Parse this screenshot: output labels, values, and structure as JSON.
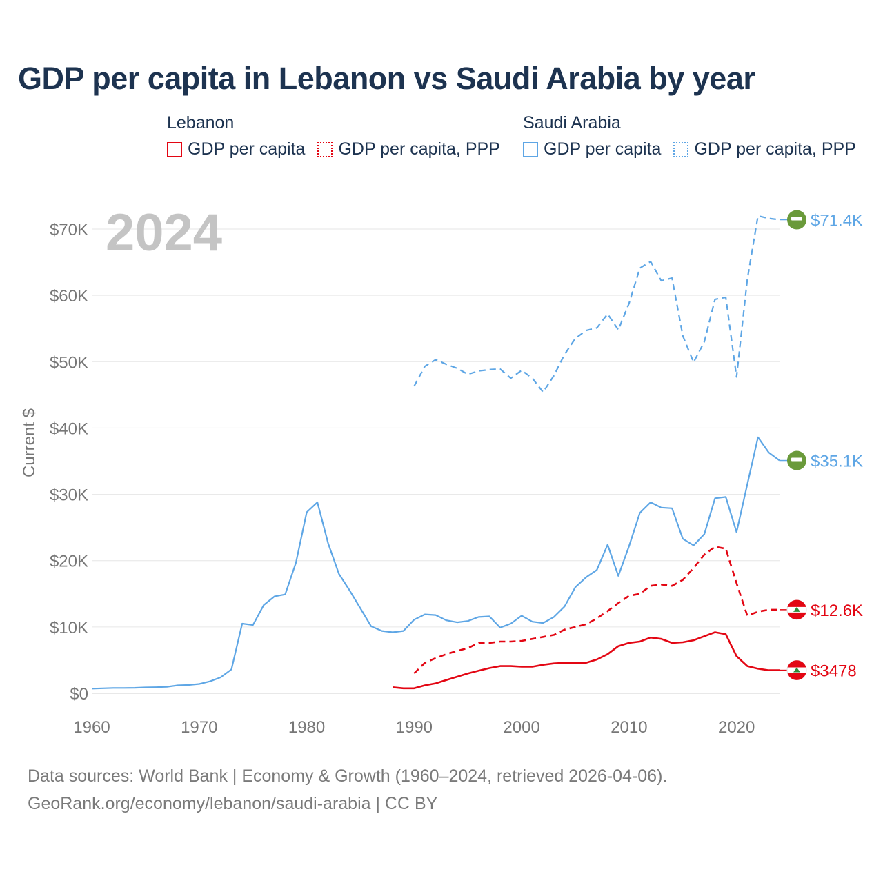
{
  "title": "GDP per capita in Lebanon vs Saudi Arabia by year",
  "legend": {
    "lebanon": {
      "name": "Lebanon",
      "solid": "GDP per capita",
      "ppp": "GDP per capita, PPP"
    },
    "saudi": {
      "name": "Saudi Arabia",
      "solid": "GDP per capita",
      "ppp": "GDP per capita, PPP"
    }
  },
  "footer": {
    "line1": "Data sources: World Bank | Economy & Growth (1960–2024, retrieved 2026-04-06).",
    "line2": "GeoRank.org/economy/lebanon/saudi-arabia | CC BY"
  },
  "colors": {
    "lebanon": "#e30613",
    "saudi": "#5ea6e5",
    "title": "#1d3350",
    "axis": "#777777",
    "grid": "#e6e6e6",
    "year": "#c4c4c4"
  },
  "chart_data": {
    "type": "line",
    "year_label": "2024",
    "ylabel": "Current $",
    "xlim": [
      1960,
      2024
    ],
    "ylim": [
      0,
      72000
    ],
    "x_ticks": [
      1960,
      1970,
      1980,
      1990,
      2000,
      2010,
      2020
    ],
    "x_tick_labels": [
      "1960",
      "1970",
      "1980",
      "1990",
      "2000",
      "2010",
      "2020"
    ],
    "y_ticks": [
      0,
      10000,
      20000,
      30000,
      40000,
      50000,
      60000,
      70000
    ],
    "y_tick_labels": [
      "$0",
      "$10K",
      "$20K",
      "$30K",
      "$40K",
      "$50K",
      "$60K",
      "$70K"
    ],
    "series": [
      {
        "name": "Saudi Arabia GDP per capita",
        "country": "saudi",
        "dashed": false,
        "end_label": "$35.1K",
        "x": [
          1960,
          1961,
          1962,
          1963,
          1964,
          1965,
          1966,
          1967,
          1968,
          1969,
          1970,
          1971,
          1972,
          1973,
          1974,
          1975,
          1976,
          1977,
          1978,
          1979,
          1980,
          1981,
          1982,
          1983,
          1984,
          1985,
          1986,
          1987,
          1988,
          1989,
          1990,
          1991,
          1992,
          1993,
          1994,
          1995,
          1996,
          1997,
          1998,
          1999,
          2000,
          2001,
          2002,
          2003,
          2004,
          2005,
          2006,
          2007,
          2008,
          2009,
          2010,
          2011,
          2012,
          2013,
          2014,
          2015,
          2016,
          2017,
          2018,
          2019,
          2020,
          2021,
          2022,
          2023,
          2024
        ],
        "values": [
          700,
          750,
          800,
          800,
          820,
          880,
          920,
          980,
          1200,
          1250,
          1400,
          1800,
          2400,
          3600,
          10500,
          10300,
          13300,
          14600,
          14900,
          19700,
          27300,
          28800,
          22600,
          18000,
          15500,
          12800,
          10100,
          9400,
          9200,
          9400,
          11100,
          11900,
          11800,
          11000,
          10700,
          10900,
          11500,
          11600,
          9900,
          10500,
          11700,
          10800,
          10600,
          11500,
          13100,
          16000,
          17500,
          18600,
          22400,
          17700,
          22200,
          27200,
          28800,
          28000,
          27900,
          23300,
          22300,
          24000,
          29400,
          29600,
          24300,
          31500,
          38600,
          36300,
          35100
        ]
      },
      {
        "name": "Saudi Arabia GDP per capita, PPP",
        "country": "saudi",
        "dashed": true,
        "end_label": "$71.4K",
        "x": [
          1990,
          1991,
          1992,
          1993,
          1994,
          1995,
          1996,
          1997,
          1998,
          1999,
          2000,
          2001,
          2002,
          2003,
          2004,
          2005,
          2006,
          2007,
          2008,
          2009,
          2010,
          2011,
          2012,
          2013,
          2014,
          2015,
          2016,
          2017,
          2018,
          2019,
          2020,
          2021,
          2022,
          2023,
          2024
        ],
        "values": [
          46300,
          49300,
          50300,
          49600,
          49000,
          48100,
          48600,
          48800,
          48900,
          47500,
          48700,
          47500,
          45400,
          47900,
          51100,
          53500,
          54700,
          55100,
          57200,
          54800,
          58800,
          64100,
          65100,
          62200,
          62600,
          53900,
          49900,
          53000,
          59400,
          59700,
          47700,
          62400,
          72000,
          71600,
          71400
        ]
      },
      {
        "name": "Lebanon GDP per capita",
        "country": "lebanon",
        "dashed": false,
        "end_label": "$3478",
        "x": [
          1988,
          1989,
          1990,
          1991,
          1992,
          1993,
          1994,
          1995,
          1996,
          1997,
          1998,
          1999,
          2000,
          2001,
          2002,
          2003,
          2004,
          2005,
          2006,
          2007,
          2008,
          2009,
          2010,
          2011,
          2012,
          2013,
          2014,
          2015,
          2016,
          2017,
          2018,
          2019,
          2020,
          2021,
          2022,
          2023,
          2024
        ],
        "values": [
          900,
          750,
          750,
          1200,
          1500,
          2000,
          2500,
          3000,
          3400,
          3800,
          4100,
          4100,
          4000,
          4000,
          4300,
          4500,
          4600,
          4600,
          4600,
          5100,
          5900,
          7100,
          7600,
          7800,
          8400,
          8200,
          7600,
          7700,
          8000,
          8600,
          9200,
          8900,
          5600,
          4100,
          3700,
          3478,
          3478
        ]
      },
      {
        "name": "Lebanon GDP per capita, PPP",
        "country": "lebanon",
        "dashed": true,
        "end_label": "$12.6K",
        "x": [
          1990,
          1991,
          1992,
          1993,
          1994,
          1995,
          1996,
          1997,
          1998,
          1999,
          2000,
          2001,
          2002,
          2003,
          2004,
          2005,
          2006,
          2007,
          2008,
          2009,
          2010,
          2011,
          2012,
          2013,
          2014,
          2015,
          2016,
          2017,
          2018,
          2019,
          2020,
          2021,
          2022,
          2023,
          2024
        ],
        "values": [
          3000,
          4600,
          5300,
          5900,
          6400,
          6800,
          7600,
          7600,
          7800,
          7800,
          7900,
          8200,
          8500,
          8800,
          9600,
          10000,
          10400,
          11300,
          12400,
          13600,
          14700,
          15000,
          16200,
          16400,
          16200,
          17100,
          18900,
          20900,
          22100,
          21800,
          16600,
          11700,
          12300,
          12600,
          12600
        ]
      }
    ]
  }
}
